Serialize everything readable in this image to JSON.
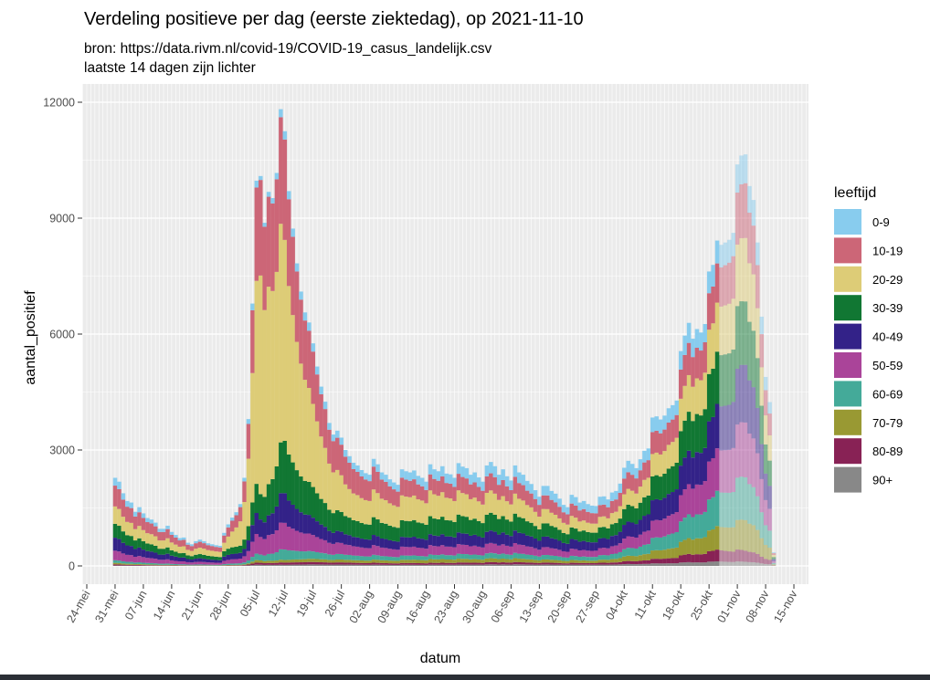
{
  "chart_data": {
    "type": "bar",
    "stacked": true,
    "title": "Verdeling positieve per dag (eerste ziektedag), op 2021-11-10",
    "subtitle_lines": [
      "bron: https://data.rivm.nl/covid-19/COVID-19_casus_landelijk.csv",
      "laatste 14 dagen zijn lichter"
    ],
    "xlabel": "datum",
    "ylabel": "aantal_positief",
    "ylim": [
      0,
      12000
    ],
    "grid": true,
    "legend_position": "right",
    "legend_title": "leeftijd",
    "lighter_from": "2021-10-28",
    "y_ticks": [
      {
        "value": 0,
        "label": "0"
      },
      {
        "value": 3000,
        "label": "3000"
      },
      {
        "value": 6000,
        "label": "6000"
      },
      {
        "value": 9000,
        "label": "9000"
      },
      {
        "value": 12000,
        "label": "12000"
      }
    ],
    "x_ticks": [
      {
        "date": "2021-05-24",
        "label": "24-mei"
      },
      {
        "date": "2021-05-31",
        "label": "31-mei"
      },
      {
        "date": "2021-06-07",
        "label": "07-jun"
      },
      {
        "date": "2021-06-14",
        "label": "14-jun"
      },
      {
        "date": "2021-06-21",
        "label": "21-jun"
      },
      {
        "date": "2021-06-28",
        "label": "28-jun"
      },
      {
        "date": "2021-07-05",
        "label": "05-jul"
      },
      {
        "date": "2021-07-12",
        "label": "12-jul"
      },
      {
        "date": "2021-07-19",
        "label": "19-jul"
      },
      {
        "date": "2021-07-26",
        "label": "26-jul"
      },
      {
        "date": "2021-08-02",
        "label": "02-aug"
      },
      {
        "date": "2021-08-09",
        "label": "09-aug"
      },
      {
        "date": "2021-08-16",
        "label": "16-aug"
      },
      {
        "date": "2021-08-23",
        "label": "23-aug"
      },
      {
        "date": "2021-08-30",
        "label": "30-aug"
      },
      {
        "date": "2021-09-06",
        "label": "06-sep"
      },
      {
        "date": "2021-09-13",
        "label": "13-sep"
      },
      {
        "date": "2021-09-20",
        "label": "20-sep"
      },
      {
        "date": "2021-09-27",
        "label": "27-sep"
      },
      {
        "date": "2021-10-04",
        "label": "04-okt"
      },
      {
        "date": "2021-10-11",
        "label": "11-okt"
      },
      {
        "date": "2021-10-18",
        "label": "18-okt"
      },
      {
        "date": "2021-10-25",
        "label": "25-okt"
      },
      {
        "date": "2021-11-01",
        "label": "01-nov"
      },
      {
        "date": "2021-11-08",
        "label": "08-nov"
      },
      {
        "date": "2021-11-15",
        "label": "15-nov"
      }
    ],
    "x": [
      "2021-05-31",
      "2021-06-01",
      "2021-06-02",
      "2021-06-03",
      "2021-06-04",
      "2021-06-05",
      "2021-06-06",
      "2021-06-07",
      "2021-06-08",
      "2021-06-09",
      "2021-06-10",
      "2021-06-11",
      "2021-06-12",
      "2021-06-13",
      "2021-06-14",
      "2021-06-15",
      "2021-06-16",
      "2021-06-17",
      "2021-06-18",
      "2021-06-19",
      "2021-06-20",
      "2021-06-21",
      "2021-06-22",
      "2021-06-23",
      "2021-06-24",
      "2021-06-25",
      "2021-06-26",
      "2021-06-27",
      "2021-06-28",
      "2021-06-29",
      "2021-06-30",
      "2021-07-01",
      "2021-07-02",
      "2021-07-03",
      "2021-07-04",
      "2021-07-05",
      "2021-07-06",
      "2021-07-07",
      "2021-07-08",
      "2021-07-09",
      "2021-07-10",
      "2021-07-11",
      "2021-07-12",
      "2021-07-13",
      "2021-07-14",
      "2021-07-15",
      "2021-07-16",
      "2021-07-17",
      "2021-07-18",
      "2021-07-19",
      "2021-07-20",
      "2021-07-21",
      "2021-07-22",
      "2021-07-23",
      "2021-07-24",
      "2021-07-25",
      "2021-07-26",
      "2021-07-27",
      "2021-07-28",
      "2021-07-29",
      "2021-07-30",
      "2021-07-31",
      "2021-08-01",
      "2021-08-02",
      "2021-08-03",
      "2021-08-04",
      "2021-08-05",
      "2021-08-06",
      "2021-08-07",
      "2021-08-08",
      "2021-08-09",
      "2021-08-10",
      "2021-08-11",
      "2021-08-12",
      "2021-08-13",
      "2021-08-14",
      "2021-08-15",
      "2021-08-16",
      "2021-08-17",
      "2021-08-18",
      "2021-08-19",
      "2021-08-20",
      "2021-08-21",
      "2021-08-22",
      "2021-08-23",
      "2021-08-24",
      "2021-08-25",
      "2021-08-26",
      "2021-08-27",
      "2021-08-28",
      "2021-08-29",
      "2021-08-30",
      "2021-08-31",
      "2021-09-01",
      "2021-09-02",
      "2021-09-03",
      "2021-09-04",
      "2021-09-05",
      "2021-09-06",
      "2021-09-07",
      "2021-09-08",
      "2021-09-09",
      "2021-09-10",
      "2021-09-11",
      "2021-09-12",
      "2021-09-13",
      "2021-09-14",
      "2021-09-15",
      "2021-09-16",
      "2021-09-17",
      "2021-09-18",
      "2021-09-19",
      "2021-09-20",
      "2021-09-21",
      "2021-09-22",
      "2021-09-23",
      "2021-09-24",
      "2021-09-25",
      "2021-09-26",
      "2021-09-27",
      "2021-09-28",
      "2021-09-29",
      "2021-09-30",
      "2021-10-01",
      "2021-10-02",
      "2021-10-03",
      "2021-10-04",
      "2021-10-05",
      "2021-10-06",
      "2021-10-07",
      "2021-10-08",
      "2021-10-09",
      "2021-10-10",
      "2021-10-11",
      "2021-10-12",
      "2021-10-13",
      "2021-10-14",
      "2021-10-15",
      "2021-10-16",
      "2021-10-17",
      "2021-10-18",
      "2021-10-19",
      "2021-10-20",
      "2021-10-21",
      "2021-10-22",
      "2021-10-23",
      "2021-10-24",
      "2021-10-25",
      "2021-10-26",
      "2021-10-27",
      "2021-10-28",
      "2021-10-29",
      "2021-10-30",
      "2021-10-31",
      "2021-11-01",
      "2021-11-02",
      "2021-11-03",
      "2021-11-04",
      "2021-11-05",
      "2021-11-06",
      "2021-11-07",
      "2021-11-08",
      "2021-11-09",
      "2021-11-10"
    ],
    "total": [
      2280,
      2180,
      1880,
      1680,
      1640,
      1400,
      1520,
      1360,
      1240,
      1200,
      1120,
      960,
      960,
      1040,
      880,
      800,
      720,
      735,
      600,
      560,
      640,
      680,
      640,
      585,
      560,
      535,
      520,
      855,
      1075,
      1250,
      1390,
      1600,
      2280,
      3800,
      6790,
      9970,
      10090,
      8880,
      9680,
      9520,
      10170,
      11820,
      11250,
      9700,
      8730,
      7830,
      7100,
      6560,
      6300,
      5760,
      5160,
      4640,
      4250,
      3700,
      3400,
      3500,
      3320,
      3000,
      2840,
      2670,
      2600,
      2480,
      2400,
      2360,
      2770,
      2630,
      2420,
      2360,
      2240,
      2160,
      2100,
      2500,
      2450,
      2420,
      2470,
      2330,
      2280,
      2180,
      2630,
      2500,
      2450,
      2580,
      2390,
      2370,
      2280,
      2660,
      2570,
      2530,
      2360,
      2420,
      2290,
      2180,
      2600,
      2690,
      2580,
      2360,
      2500,
      2320,
      2210,
      2600,
      2420,
      2360,
      2200,
      2120,
      1960,
      1790,
      2070,
      2070,
      1940,
      1870,
      1740,
      1580,
      1520,
      1840,
      1780,
      1640,
      1680,
      1600,
      1560,
      1550,
      1790,
      1800,
      1720,
      1900,
      1940,
      2130,
      2540,
      2720,
      2640,
      2530,
      2760,
      2980,
      3040,
      3840,
      3870,
      3790,
      3890,
      4080,
      4160,
      4280,
      5560,
      5960,
      6290,
      5880,
      6130,
      6040,
      6260,
      7620,
      7790,
      8420,
      8310,
      8370,
      8440,
      8620,
      10390,
      10620,
      10650,
      9830,
      9470,
      8370,
      6450,
      4890,
      4240,
      355
    ],
    "share_dates": [
      "2021-05-31",
      "2021-06-27",
      "2021-07-06",
      "2021-07-12",
      "2021-07-28",
      "2021-08-16",
      "2021-09-25",
      "2021-10-27",
      "2021-11-03",
      "2021-11-10"
    ],
    "series": [
      {
        "name": "0-9",
        "color": "#88CCEE",
        "share_pct": [
          9,
          8,
          1,
          1.9,
          6,
          10,
          12.5,
          7,
          7,
          7
        ]
      },
      {
        "name": "10-19",
        "color": "#CC6677",
        "share_pct": [
          24,
          22,
          24.5,
          23,
          24,
          16,
          17.5,
          12,
          13.3,
          13.3
        ]
      },
      {
        "name": "20-29",
        "color": "#DDCC77",
        "share_pct": [
          20,
          26,
          56,
          46,
          26,
          26,
          15,
          15,
          15.4,
          15.4
        ]
      },
      {
        "name": "30-39",
        "color": "#117733",
        "share_pct": [
          16,
          16,
          6.5,
          12,
          16,
          18,
          16,
          16,
          15.4,
          15.4
        ]
      },
      {
        "name": "40-49",
        "color": "#332288",
        "share_pct": [
          15,
          13,
          4.5,
          6.8,
          9,
          10.8,
          14,
          13.6,
          14,
          14
        ]
      },
      {
        "name": "50-59",
        "color": "#AA4499",
        "share_pct": [
          11,
          10,
          4.5,
          6.1,
          9,
          9.3,
          10,
          13,
          13.3,
          13.3
        ]
      },
      {
        "name": "60-69",
        "color": "#44AA99",
        "share_pct": [
          3,
          3,
          1.5,
          2.4,
          4.5,
          4.6,
          6,
          10.8,
          10.4,
          10.4
        ]
      },
      {
        "name": "70-79",
        "color": "#999933",
        "share_pct": [
          1.7,
          1.2,
          0.6,
          0.6,
          2.5,
          3.7,
          4,
          7.2,
          7.4,
          7.4
        ]
      },
      {
        "name": "80-89",
        "color": "#882255",
        "share_pct": [
          1.3,
          0.8,
          0.5,
          0.5,
          1.8,
          1.9,
          2.5,
          3.6,
          2.7,
          2.7
        ]
      },
      {
        "name": "90+",
        "color": "#888888",
        "share_pct": [
          0.5,
          0.4,
          0.3,
          0.25,
          1.2,
          1.2,
          2,
          1.4,
          1,
          1
        ]
      }
    ]
  }
}
